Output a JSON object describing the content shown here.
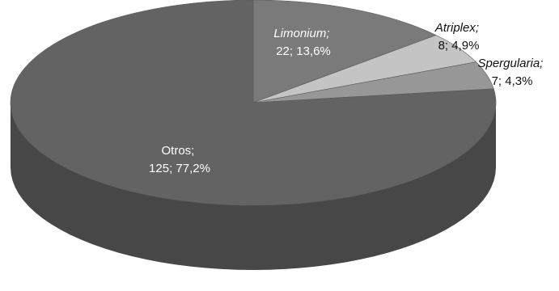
{
  "chart_data": {
    "type": "pie",
    "style": "3d",
    "categories": [
      "Limonium",
      "Atriplex",
      "Spergularia",
      "Otros"
    ],
    "values": [
      22,
      8,
      7,
      125
    ],
    "percents": [
      "13,6%",
      "4,9%",
      "4,3%",
      "77,2%"
    ],
    "labels": [
      {
        "name": "Limonium;",
        "detail": "22; 13,6%",
        "italic": true,
        "color": "#ffffff"
      },
      {
        "name": "Atriplex;",
        "detail": "8; 4,9%",
        "italic": true,
        "color": "#111111"
      },
      {
        "name": "Spergularia;",
        "detail": "7; 4,3%",
        "italic": true,
        "color": "#111111"
      },
      {
        "name": "Otros;",
        "detail": "125; 77,2%",
        "italic": false,
        "color": "#ffffff"
      }
    ],
    "colors": [
      "#7a7a7a",
      "#c4c4c4",
      "#979797",
      "#636363"
    ],
    "side_colors": [
      "#575757",
      "#8f8f8f",
      "#6e6e6e",
      "#474747"
    ]
  }
}
